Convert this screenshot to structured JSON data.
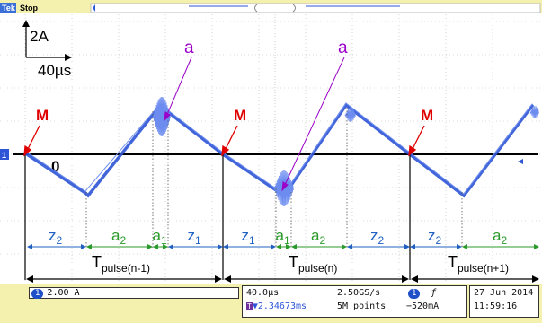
{
  "header": {
    "brand": "Tek",
    "state": "Stop"
  },
  "scale": {
    "vertical": "2A",
    "horizontal": "40µs",
    "zero_label": "0"
  },
  "markers": {
    "m_label": "M",
    "a_label": "a"
  },
  "intervals": {
    "z": "z",
    "a": "a",
    "sub1": "1",
    "sub2": "2",
    "T": "T",
    "pulse_prev": "pulse(n-1)",
    "pulse_curr": "pulse(n)",
    "pulse_next": "pulse(n+1)"
  },
  "status": {
    "channel_num": "1",
    "channel_scale": "2.00 A",
    "timebase": "40.0µs",
    "sample_rate": "2.50GS/s",
    "trigger_delay": "▼2.34673ms",
    "record_length": "5M points",
    "trigger_channel": "1",
    "trigger_slope": "ƒ",
    "trigger_level": "−520mA",
    "date": "27 Jun 2014",
    "time": "11:59:16"
  },
  "colors": {
    "trace": "#2e55d6",
    "z_interval": "#2060c0",
    "a_interval": "#2a9a2a",
    "marker": "#e00000",
    "annotation_a": "#9a00c8"
  }
}
